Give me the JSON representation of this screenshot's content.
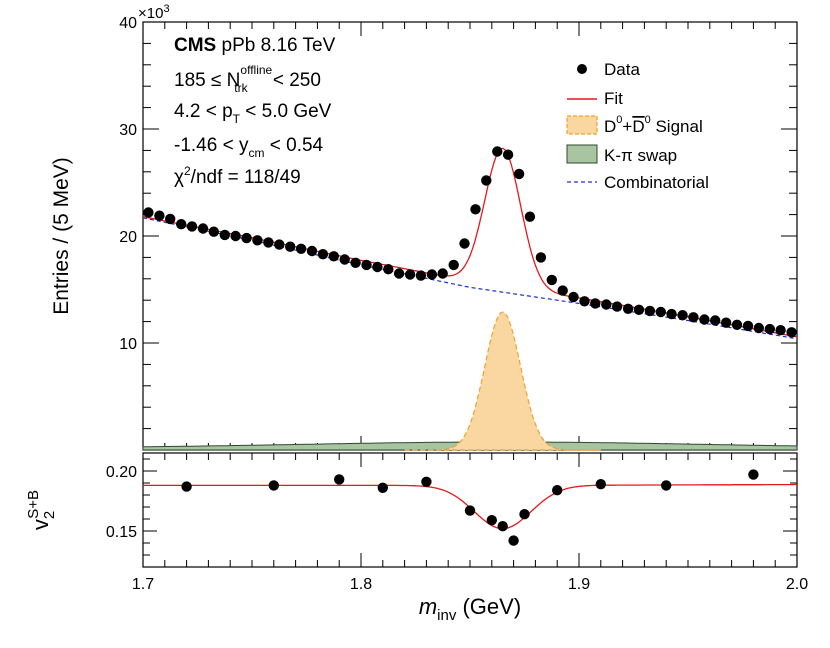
{
  "chart_data": [
    {
      "type": "scatter",
      "panel": "upper",
      "ylabel": "Entries / (5 MeV)",
      "y_multiplier": "×10",
      "y_multiplier_exp": "3",
      "xlim": [
        1.7,
        2.0
      ],
      "ylim": [
        0,
        40
      ],
      "yticks": [
        10,
        20,
        30,
        40
      ],
      "ytick_labels": [
        "10",
        "20",
        "30",
        "40"
      ],
      "annotations": {
        "experiment": "CMS",
        "system": " pPb 8.16 TeV",
        "mult_pre": "185 ≤ N",
        "mult_sub": "trk",
        "mult_sup": "offline",
        "mult_post": " < 250",
        "pt_pre": "4.2 < p",
        "pt_sub": "T",
        "pt_post": " < 5.0 GeV",
        "y_pre": "-1.46 < y",
        "y_sub": "cm",
        "y_post": " < 0.54",
        "chi_pre": "χ",
        "chi_sup": "2",
        "chi_post": "/ndf = 118/49"
      },
      "legend": {
        "position": "top-right",
        "data": "Data",
        "fit": "Fit",
        "signal_pre": "D",
        "signal_sup1": "0",
        "signal_mid": "+",
        "signal_bar": "D",
        "signal_sup2": "0",
        "signal_post": " Signal",
        "swap": "K-π swap",
        "combinatorial": "Combinatorial"
      },
      "colors": {
        "data": "#000000",
        "fit": "#e31a1c",
        "signal_fill": "#fad7a0",
        "signal_line": "#f0a030",
        "swap_fill": "#a9c4a0",
        "swap_line": "#2e4a2e",
        "combinatorial": "#2030d0"
      },
      "series": [
        {
          "name": "Data",
          "x": [
            1.7025,
            1.7075,
            1.7125,
            1.7175,
            1.7225,
            1.7275,
            1.7325,
            1.7375,
            1.7425,
            1.7475,
            1.7525,
            1.7575,
            1.7625,
            1.7675,
            1.7725,
            1.7775,
            1.7825,
            1.7875,
            1.7925,
            1.7975,
            1.8025,
            1.8075,
            1.8125,
            1.8175,
            1.8225,
            1.8275,
            1.8325,
            1.8375,
            1.8425,
            1.8475,
            1.8525,
            1.8575,
            1.8625,
            1.8675,
            1.8725,
            1.8775,
            1.8825,
            1.8875,
            1.8925,
            1.8975,
            1.9025,
            1.9075,
            1.9125,
            1.9175,
            1.9225,
            1.9275,
            1.9325,
            1.9375,
            1.9425,
            1.9475,
            1.9525,
            1.9575,
            1.9625,
            1.9675,
            1.9725,
            1.9775,
            1.9825,
            1.9875,
            1.9925,
            1.9975
          ],
          "y": [
            22.2,
            21.9,
            21.6,
            21.1,
            20.9,
            20.7,
            20.4,
            20.1,
            20.0,
            19.8,
            19.6,
            19.4,
            19.2,
            19.0,
            18.8,
            18.6,
            18.3,
            18.1,
            17.8,
            17.5,
            17.3,
            17.1,
            16.9,
            16.5,
            16.4,
            16.3,
            16.4,
            16.5,
            17.3,
            19.3,
            22.5,
            25.2,
            27.9,
            27.6,
            25.8,
            21.8,
            18.0,
            15.9,
            14.9,
            14.3,
            13.9,
            13.7,
            13.6,
            13.4,
            13.2,
            13.1,
            13.0,
            12.9,
            12.7,
            12.6,
            12.4,
            12.2,
            12.1,
            11.9,
            11.7,
            11.6,
            11.4,
            11.3,
            11.2,
            11.0
          ]
        },
        {
          "name": "Fit",
          "model": "combinatorial + signal + swap"
        },
        {
          "name": "D0+D0bar Signal",
          "amplitude": 12.9,
          "mean": 1.865,
          "sigma": 0.0082
        },
        {
          "name": "K-π swap",
          "amplitude": 0.55,
          "mean": 1.865,
          "sigma": 0.09,
          "baseline": 0.2
        },
        {
          "name": "Combinatorial",
          "x": [
            1.7,
            1.75,
            1.8,
            1.85,
            1.9,
            1.95,
            2.0
          ],
          "y": [
            21.7,
            19.6,
            17.3,
            15.2,
            13.7,
            12.1,
            10.4
          ]
        }
      ]
    },
    {
      "type": "scatter",
      "panel": "lower",
      "ylabel_base": "v",
      "ylabel_sub": "2",
      "ylabel_sup": "S+B",
      "xlabel_base": "m",
      "xlabel_sub": "inv",
      "xlabel_post": " (GeV)",
      "xlim": [
        1.7,
        2.0
      ],
      "ylim": [
        0.12,
        0.215
      ],
      "yticks": [
        0.15,
        0.2
      ],
      "ytick_labels": [
        "0.15",
        "0.20"
      ],
      "xticks": [
        1.7,
        1.8,
        1.9,
        2.0
      ],
      "xtick_labels": [
        "1.7",
        "1.8",
        "1.9",
        "2.0"
      ],
      "series": [
        {
          "name": "Data",
          "x": [
            1.72,
            1.76,
            1.79,
            1.81,
            1.83,
            1.85,
            1.86,
            1.865,
            1.87,
            1.875,
            1.89,
            1.91,
            1.94,
            1.98
          ],
          "y": [
            0.187,
            0.188,
            0.193,
            0.186,
            0.191,
            0.167,
            0.159,
            0.154,
            0.142,
            0.164,
            0.184,
            0.189,
            0.188,
            0.197
          ]
        },
        {
          "name": "Fit",
          "baseline": 0.188,
          "slope": 0.03,
          "dip_amplitude": 0.036,
          "dip_mean": 1.865,
          "dip_sigma": 0.013
        }
      ]
    }
  ]
}
